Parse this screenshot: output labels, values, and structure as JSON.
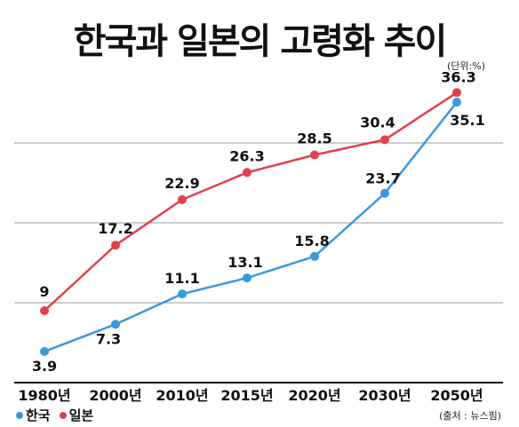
{
  "title": "한국과 일본의 고령화 추이",
  "unit_note": "(단위:%)",
  "source_note": "(출처 : 뉴스핌)",
  "colors": {
    "korea": "#3a98dc",
    "japan": "#e0404b",
    "grid": "#999999",
    "baseline": "#111111"
  },
  "chart_data": {
    "type": "line",
    "title": "한국과 일본의 고령화 추이",
    "categories": [
      "1980년",
      "2000년",
      "2010년",
      "2015년",
      "2020년",
      "2030년",
      "2050년"
    ],
    "series": [
      {
        "name": "한국",
        "color": "#3a98dc",
        "values": [
          3.9,
          7.3,
          11.1,
          13.1,
          15.8,
          23.7,
          35.1
        ]
      },
      {
        "name": "일본",
        "color": "#e0404b",
        "values": [
          9,
          17.2,
          22.9,
          26.3,
          28.5,
          30.4,
          36.3
        ]
      }
    ],
    "data_labels": {
      "한국": [
        "3.9",
        "7.3",
        "11.1",
        "13.1",
        "15.8",
        "23.7",
        "35.1"
      ],
      "일본": [
        "9",
        "17.2",
        "22.9",
        "26.3",
        "28.5",
        "30.4",
        "36.3"
      ]
    },
    "ylim": [
      0,
      40
    ],
    "grid": true,
    "legend": "bottom-left"
  }
}
